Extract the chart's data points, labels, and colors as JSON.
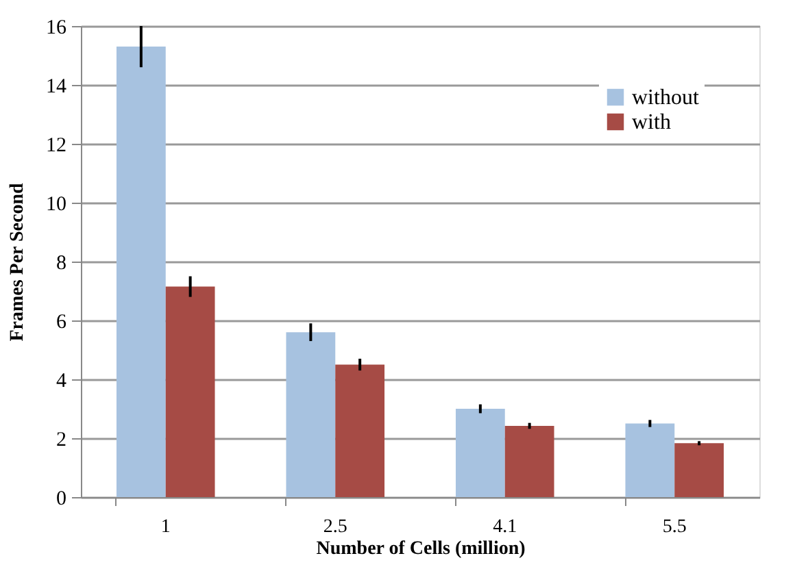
{
  "chart_data": {
    "type": "bar",
    "xlabel": "Number of Cells (million)",
    "ylabel": "Frames  Per  Second",
    "categories": [
      "1",
      "2.5",
      "4.1",
      "5.5"
    ],
    "series": [
      {
        "name": "without",
        "color": "#a7c2e0",
        "values": [
          15.3,
          5.6,
          3.0,
          2.5
        ],
        "errors": [
          0.7,
          0.3,
          0.15,
          0.12
        ]
      },
      {
        "name": "with",
        "color": "#a64b45",
        "values": [
          7.15,
          4.5,
          2.42,
          1.83
        ],
        "errors": [
          0.35,
          0.2,
          0.1,
          0.07
        ]
      }
    ],
    "ylim": [
      0,
      16
    ],
    "yticks": [
      0,
      2,
      4,
      6,
      8,
      10,
      12,
      14,
      16
    ],
    "grid": "y",
    "legend": "top right"
  }
}
